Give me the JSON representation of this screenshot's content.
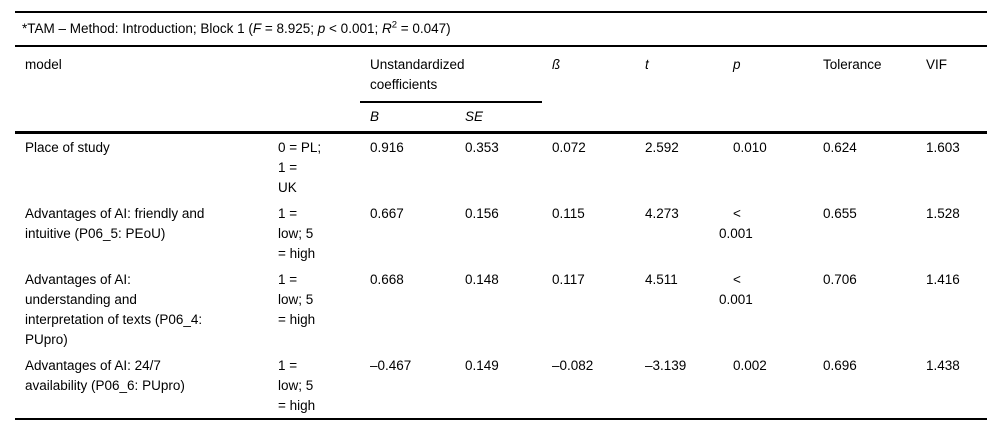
{
  "title": {
    "pre": "*TAM – Method: Introduction; Block 1 (",
    "f_label": "F",
    "f_value": " = 8.925; ",
    "p_label": "p",
    "p_value": " < 0.001; ",
    "r_label": "R",
    "r_sup": "2",
    "r_value": " = 0.047)"
  },
  "columns": {
    "model": "model",
    "coding": "",
    "unstandardized": "Unstandardized\ncoefficients",
    "b": "B",
    "se": "SE",
    "beta": "ß",
    "t": "t",
    "p": "p",
    "tolerance": "Tolerance",
    "vif": "VIF"
  },
  "rows": [
    {
      "model": "Place of study",
      "coding": "0 = PL;\n1 =\nUK",
      "b": "0.916",
      "se": "0.353",
      "beta": "0.072",
      "t": "2.592",
      "p": "0.010",
      "tolerance": "0.624",
      "vif": "1.603"
    },
    {
      "model": "Advantages of AI: friendly and\nintuitive (P06_5: PEoU)",
      "coding": "1 =\nlow; 5\n= high",
      "b": "0.667",
      "se": "0.156",
      "beta": "0.115",
      "t": "4.273",
      "p": "<\n0.001",
      "tolerance": "0.655",
      "vif": "1.528"
    },
    {
      "model": "Advantages of AI:\nunderstanding and\ninterpretation of texts (P06_4:\nPUpro)",
      "coding": "1 =\nlow; 5\n= high",
      "b": "0.668",
      "se": "0.148",
      "beta": "0.117",
      "t": "4.511",
      "p": "<\n0.001",
      "tolerance": "0.706",
      "vif": "1.416"
    },
    {
      "model": "Advantages of AI: 24/7\navailability (P06_6: PUpro)",
      "coding": "1 =\nlow; 5\n= high",
      "b": "–0.467",
      "se": "0.149",
      "beta": "–0.082",
      "t": "–3.139",
      "p": "0.002",
      "tolerance": "0.696",
      "vif": "1.438"
    }
  ]
}
